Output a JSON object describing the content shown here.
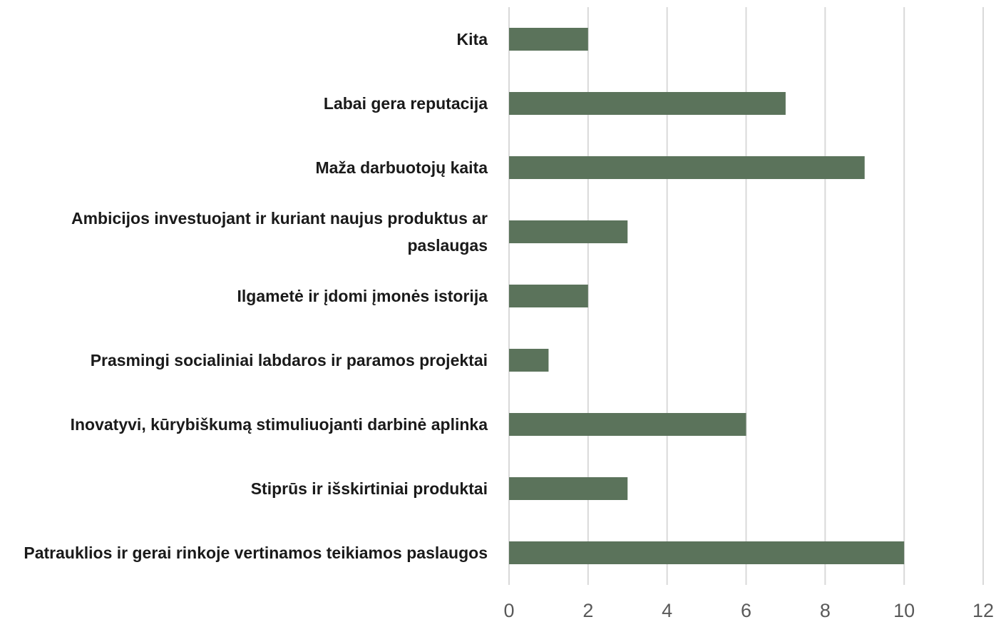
{
  "chart_data": {
    "type": "barh",
    "categories": [
      "Kita",
      "Labai gera reputacija",
      "Maža darbuotojų kaita",
      "Ambicijos investuojant ir kuriant naujus produktus ar paslaugas",
      "Ilgametė ir įdomi įmonės istorija",
      "Prasmingi socialiniai labdaros ir paramos projektai",
      "Inovatyvi, kūrybiškumą stimuliuojanti darbinė aplinka",
      "Stiprūs ir išskirtiniai produktai",
      "Patrauklios ir gerai rinkoje vertinamos teikiamos paslaugos"
    ],
    "values": [
      2,
      7,
      9,
      3,
      2,
      1,
      6,
      3,
      10
    ],
    "color": "#5b735b",
    "xlim": [
      0,
      12
    ],
    "xticks": [
      0,
      2,
      4,
      6,
      8,
      10,
      12
    ],
    "grid": true
  }
}
